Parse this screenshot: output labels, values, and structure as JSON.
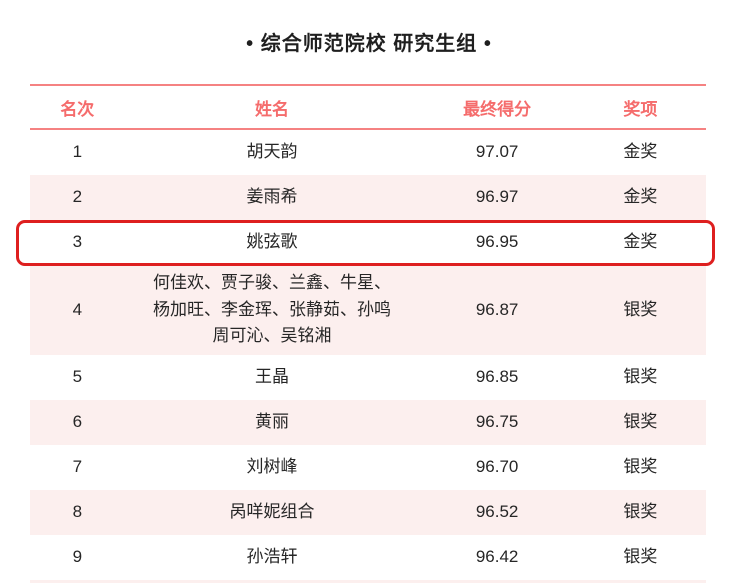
{
  "title": "• 综合师范院校 研究生组 •",
  "colors": {
    "header_text": "#F56C6C",
    "line": "#F58282",
    "alt_bg": "#FCEFEE",
    "highlight": "#DE1F1F",
    "text": "#262626"
  },
  "table": {
    "headers": [
      "名次",
      "姓名",
      "最终得分",
      "奖项"
    ],
    "rows": [
      {
        "rank": "1",
        "name": "胡天韵",
        "score": "97.07",
        "award": "金奖",
        "highlighted": false,
        "multiline": false
      },
      {
        "rank": "2",
        "name": "姜雨希",
        "score": "96.97",
        "award": "金奖",
        "highlighted": false,
        "multiline": false
      },
      {
        "rank": "3",
        "name": "姚弦歌",
        "score": "96.95",
        "award": "金奖",
        "highlighted": true,
        "multiline": false
      },
      {
        "rank": "4",
        "name": "何佳欢、贾子骏、兰鑫、牛星、\n杨加旺、李金珲、张静茹、孙鸣\n周可沁、吴铭湘",
        "score": "96.87",
        "award": "银奖",
        "highlighted": false,
        "multiline": true
      },
      {
        "rank": "5",
        "name": "王晶",
        "score": "96.85",
        "award": "银奖",
        "highlighted": false,
        "multiline": false
      },
      {
        "rank": "6",
        "name": "黄丽",
        "score": "96.75",
        "award": "银奖",
        "highlighted": false,
        "multiline": false
      },
      {
        "rank": "7",
        "name": "刘树峰",
        "score": "96.70",
        "award": "银奖",
        "highlighted": false,
        "multiline": false
      },
      {
        "rank": "8",
        "name": "呙咩妮组合",
        "score": "96.52",
        "award": "银奖",
        "highlighted": false,
        "multiline": false
      },
      {
        "rank": "9",
        "name": "孙浩轩",
        "score": "96.42",
        "award": "银奖",
        "highlighted": false,
        "multiline": false
      }
    ]
  }
}
